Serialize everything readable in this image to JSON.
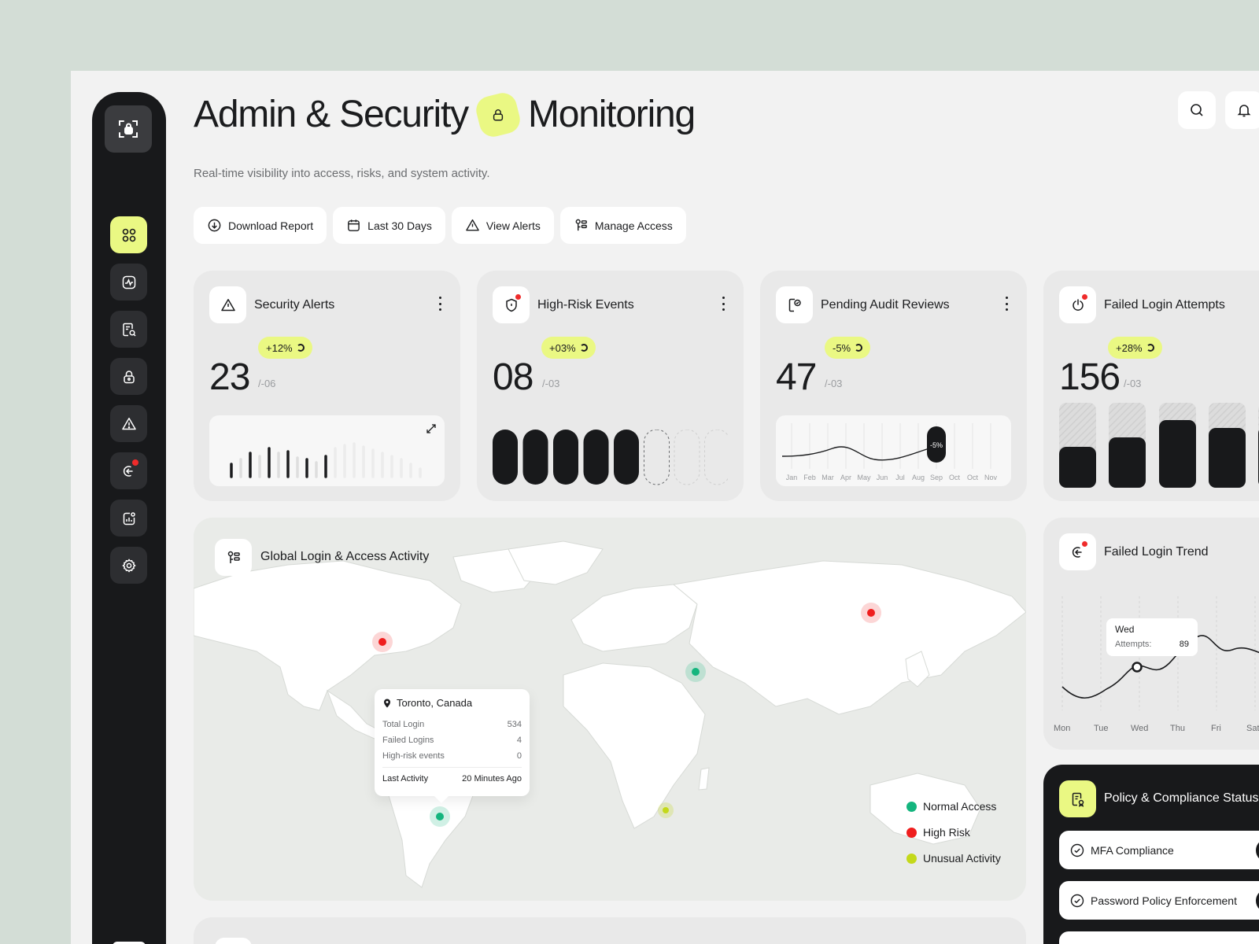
{
  "header": {
    "title_part1": "Admin & Security",
    "title_part2": "Monitoring",
    "subtitle": "Real-time visibility into access, risks, and system activity."
  },
  "actions": [
    {
      "label": "Download Report",
      "icon": "download-icon"
    },
    {
      "label": "Last 30 Days",
      "icon": "calendar-icon"
    },
    {
      "label": "View Alerts",
      "icon": "warning-icon"
    },
    {
      "label": "Manage Access",
      "icon": "access-icon"
    }
  ],
  "sidebar": {
    "items": [
      {
        "name": "dashboard",
        "icon": "grid-icon",
        "active": true
      },
      {
        "name": "activity",
        "icon": "activity-icon"
      },
      {
        "name": "audit",
        "icon": "audit-icon"
      },
      {
        "name": "security",
        "icon": "lock-icon"
      },
      {
        "name": "alerts",
        "icon": "warning-icon"
      },
      {
        "name": "logins",
        "icon": "login-icon",
        "notification": true
      },
      {
        "name": "reports",
        "icon": "report-icon"
      },
      {
        "name": "settings",
        "icon": "gear-icon"
      }
    ]
  },
  "cards": {
    "security_alerts": {
      "title": "Security Alerts",
      "change": "+12%",
      "value": "23",
      "sub": "/-06"
    },
    "high_risk": {
      "title": "High-Risk Events",
      "change": "+03%",
      "value": "08",
      "sub": "/-03",
      "filled": 5,
      "total": 8
    },
    "pending_audit": {
      "title": "Pending Audit Reviews",
      "change": "-5%",
      "value": "47",
      "sub": "/-03",
      "marker_label": "-5%",
      "months": [
        "Jan",
        "Feb",
        "Mar",
        "Apr",
        "May",
        "Jun",
        "Jul",
        "Aug",
        "Sep",
        "Oct",
        "Oct",
        "Nov"
      ]
    },
    "failed_login": {
      "title": "Failed Login Attempts",
      "change": "+28%",
      "value": "156",
      "sub": "/-03"
    }
  },
  "map": {
    "title": "Global Login & Access Activity",
    "tooltip": {
      "location": "Toronto, Canada",
      "rows": [
        {
          "label": "Total Login",
          "value": "534"
        },
        {
          "label": "Failed Logins",
          "value": "4"
        },
        {
          "label": "High-risk events",
          "value": "0"
        }
      ],
      "footer_label": "Last Activity",
      "footer_value": "20 Minutes Ago"
    },
    "legend": [
      {
        "label": "Normal Access",
        "color": "#14b57e"
      },
      {
        "label": "High Risk",
        "color": "#ef1e1e"
      },
      {
        "label": "Unusual Activity",
        "color": "#c4d91a"
      }
    ]
  },
  "trend": {
    "title": "Failed Login Trend",
    "days": [
      "Mon",
      "Tue",
      "Wed",
      "Thu",
      "Fri",
      "Sat"
    ],
    "tooltip_day": "Wed",
    "tooltip_label": "Attempts:",
    "tooltip_value": "89"
  },
  "policy": {
    "title": "Policy & Compliance Status",
    "items": [
      "MFA Compliance",
      "Password Policy Enforcement"
    ]
  }
}
